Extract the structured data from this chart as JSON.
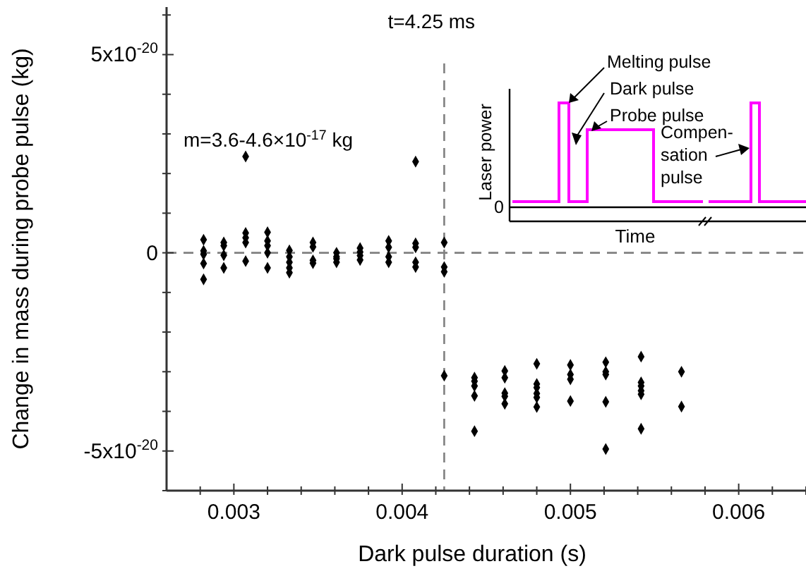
{
  "chart_data": {
    "type": "scatter",
    "xlabel": "Dark pulse duration (s)",
    "ylabel": "Change in mass during probe pulse (kg)",
    "xlim": [
      0.0026,
      0.0064
    ],
    "ylim": [
      -6e-20,
      6.2e-20
    ],
    "xticks": [
      {
        "value": 0.0028,
        "label": null
      },
      0.003,
      {
        "value": 0.0032,
        "label": null
      },
      {
        "value": 0.0034,
        "label": null
      },
      {
        "value": 0.0036,
        "label": null
      },
      {
        "value": 0.0038,
        "label": null
      },
      0.004,
      {
        "value": 0.0042,
        "label": null
      },
      {
        "value": 0.0044,
        "label": null
      },
      {
        "value": 0.0046,
        "label": null
      },
      {
        "value": 0.0048,
        "label": null
      },
      0.005,
      {
        "value": 0.0052,
        "label": null
      },
      {
        "value": 0.0054,
        "label": null
      },
      {
        "value": 0.0056,
        "label": null
      },
      {
        "value": 0.0058,
        "label": null
      },
      0.006,
      {
        "value": 0.0062,
        "label": null
      },
      {
        "value": 0.0064,
        "label": null
      }
    ],
    "yticks": [
      {
        "value": -6e-20,
        "label": null
      },
      {
        "value": -5e-20,
        "label": "-5x10$^{-20}$"
      },
      {
        "value": -4e-20,
        "label": null
      },
      {
        "value": -3e-20,
        "label": null
      },
      {
        "value": -2e-20,
        "label": null
      },
      {
        "value": -1e-20,
        "label": null
      },
      0,
      {
        "value": 1e-20,
        "label": null
      },
      {
        "value": 2e-20,
        "label": null
      },
      {
        "value": 3e-20,
        "label": null
      },
      {
        "value": 4e-20,
        "label": null
      },
      {
        "value": 5e-20,
        "label": "5x10$^{-20}$"
      },
      {
        "value": 6e-20,
        "label": null
      }
    ],
    "grid": false,
    "marker": "diamond",
    "ref_lines": [
      {
        "axis": "x",
        "value": 0.00425,
        "label": "t=4.25 ms",
        "line_style": "dashed",
        "color": "#808080"
      },
      {
        "axis": "y",
        "value": 0,
        "label": null,
        "line_style": "dashed",
        "color": "#808080"
      }
    ],
    "annotations": [
      "m=3.6-4.6×10$^{-17}$ kg",
      "Melting pulse",
      "Dark pulse",
      "Probe pulse",
      "Compen-\nsation\npulse",
      "Laser power",
      "0",
      "Time"
    ],
    "series": [
      {
        "color": "#000000",
        "x": [
          0.00282,
          0.00282,
          0.00282,
          0.00282,
          0.00282,
          0.00294,
          0.00294,
          0.00294,
          0.00294,
          0.00307,
          0.00307,
          0.00307,
          0.00307,
          0.00307,
          0.0032,
          0.0032,
          0.0032,
          0.0032,
          0.0032,
          0.00333,
          0.00333,
          0.00333,
          0.00333,
          0.00333,
          0.00347,
          0.00347,
          0.00347,
          0.00347,
          0.00361,
          0.00361,
          0.00361,
          0.00361,
          0.00375,
          0.00375,
          0.00375,
          0.00375,
          0.00392,
          0.00392,
          0.00392,
          0.00392,
          0.00408,
          0.00408,
          0.00408,
          0.00408,
          0.00408,
          0.00425,
          0.00425,
          0.00425,
          0.00425,
          0.00443,
          0.00443,
          0.00443,
          0.00443,
          0.00443,
          0.00461,
          0.00461,
          0.00461,
          0.00461,
          0.00461,
          0.0048,
          0.0048,
          0.0048,
          0.0048,
          0.0048,
          0.0048,
          0.005,
          0.005,
          0.005,
          0.005,
          0.00521,
          0.00521,
          0.00521,
          0.00521,
          0.00521,
          0.00542,
          0.00542,
          0.00542,
          0.00542,
          0.00542,
          0.00542,
          0.00566,
          0.00566
        ],
        "values": [
          3.3e-21,
          5e-22,
          -4e-22,
          -2.7e-21,
          -6.7e-21,
          2.6e-21,
          1.8e-21,
          -6e-22,
          -3.8e-21,
          5e-21,
          3.8e-21,
          2.6e-21,
          -2.1e-21,
          2.43e-20,
          5.2e-21,
          3e-21,
          1.8e-21,
          0,
          -3.8e-21,
          6e-22,
          -1e-21,
          -2.4e-21,
          -3.8e-21,
          -5e-21,
          2.6e-21,
          1.5e-21,
          -1.9e-21,
          -2.6e-21,
          0,
          -1e-21,
          -1.5e-21,
          -2.4e-21,
          1.2e-21,
          2e-22,
          -7e-22,
          -1.8e-21,
          3e-21,
          1.4e-21,
          -1e-21,
          -2.4e-21,
          2.4e-21,
          1.4e-21,
          -2.4e-21,
          -3.6e-21,
          2.3e-20,
          2.6e-21,
          -3.6e-21,
          -4.8e-21,
          -3.1e-20,
          -3.15e-20,
          -3.24e-20,
          -3.36e-20,
          -3.61e-20,
          -4.5e-20,
          -2.98e-20,
          -3.15e-20,
          -3.54e-20,
          -3.62e-20,
          -3.81e-20,
          -2.8e-20,
          -3.31e-20,
          -3.4e-20,
          -3.55e-20,
          -3.65e-20,
          -3.89e-20,
          -2.83e-20,
          -3.07e-20,
          -3.19e-20,
          -3.74e-20,
          -2.76e-20,
          -3e-20,
          -3.07e-20,
          -3.76e-20,
          -4.95e-20,
          -2.62e-20,
          -3.27e-20,
          -3.36e-20,
          -3.48e-20,
          -3.57e-20,
          -4.44e-20,
          -3e-20,
          -3.88e-20
        ]
      }
    ]
  }
}
